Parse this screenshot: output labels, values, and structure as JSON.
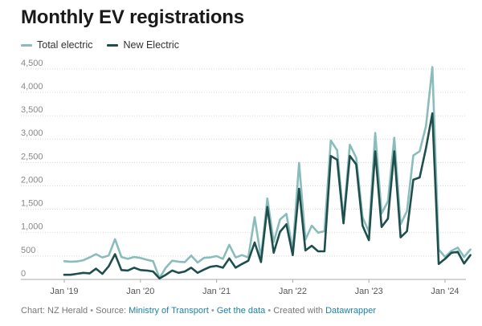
{
  "title": "Monthly EV registrations",
  "colors": {
    "total": "#8bbcbc",
    "new": "#1e4f4c",
    "grid": "#d8d8d8",
    "tick": "#888888"
  },
  "footer": {
    "chart_prefix": "Chart: NZ Herald",
    "sep": "•",
    "source_prefix": "Source:",
    "source_link": "Ministry of Transport",
    "get_data": "Get the data",
    "created_prefix": "Created with",
    "created_link": "Datawrapper"
  },
  "chart_data": {
    "type": "line",
    "ylim": [
      0,
      4600
    ],
    "y_ticks": [
      0,
      500,
      1000,
      1500,
      2000,
      2500,
      3000,
      3500,
      4000,
      4500
    ],
    "y_tick_labels": [
      "0",
      "500",
      "1,000",
      "1,500",
      "2,000",
      "2,500",
      "3,000",
      "3,500",
      "4,000",
      "4,500"
    ],
    "x_ticks": [
      {
        "label": "Jan '19",
        "index": 0
      },
      {
        "label": "Jan '20",
        "index": 12
      },
      {
        "label": "Jan '21",
        "index": 24
      },
      {
        "label": "Jan '22",
        "index": 36
      },
      {
        "label": "Jan '23",
        "index": 48
      },
      {
        "label": "Jan '24",
        "index": 60
      }
    ],
    "x": [
      "2019-01",
      "2019-02",
      "2019-03",
      "2019-04",
      "2019-05",
      "2019-06",
      "2019-07",
      "2019-08",
      "2019-09",
      "2019-10",
      "2019-11",
      "2019-12",
      "2020-01",
      "2020-02",
      "2020-03",
      "2020-04",
      "2020-05",
      "2020-06",
      "2020-07",
      "2020-08",
      "2020-09",
      "2020-10",
      "2020-11",
      "2020-12",
      "2021-01",
      "2021-02",
      "2021-03",
      "2021-04",
      "2021-05",
      "2021-06",
      "2021-07",
      "2021-08",
      "2021-09",
      "2021-10",
      "2021-11",
      "2021-12",
      "2022-01",
      "2022-02",
      "2022-03",
      "2022-04",
      "2022-05",
      "2022-06",
      "2022-07",
      "2022-08",
      "2022-09",
      "2022-10",
      "2022-11",
      "2022-12",
      "2023-01",
      "2023-02",
      "2023-03",
      "2023-04",
      "2023-05",
      "2023-06",
      "2023-07",
      "2023-08",
      "2023-09",
      "2023-10",
      "2023-11",
      "2023-12",
      "2024-01",
      "2024-02",
      "2024-03",
      "2024-04",
      "2024-05"
    ],
    "series": [
      {
        "name": "Total electric",
        "key": "total",
        "values": [
          390,
          380,
          385,
          410,
          470,
          540,
          470,
          510,
          860,
          480,
          440,
          480,
          460,
          420,
          390,
          30,
          250,
          400,
          380,
          370,
          510,
          360,
          460,
          470,
          500,
          440,
          740,
          470,
          520,
          470,
          1330,
          460,
          1730,
          800,
          1280,
          1400,
          620,
          2490,
          850,
          1150,
          1000,
          1030,
          2970,
          2760,
          1280,
          2880,
          2600,
          1330,
          1020,
          3130,
          1410,
          1670,
          3030,
          1180,
          1460,
          2650,
          2740,
          3280,
          4540,
          640,
          480,
          610,
          680,
          480,
          640
        ]
      },
      {
        "name": "New Electric",
        "key": "new",
        "values": [
          100,
          100,
          120,
          140,
          130,
          230,
          120,
          280,
          540,
          200,
          190,
          250,
          200,
          190,
          170,
          20,
          100,
          190,
          140,
          170,
          250,
          140,
          210,
          270,
          290,
          250,
          450,
          250,
          330,
          400,
          790,
          370,
          1550,
          570,
          1020,
          1180,
          520,
          1940,
          620,
          720,
          600,
          600,
          2640,
          2560,
          1200,
          2640,
          2460,
          1150,
          840,
          2740,
          1120,
          1300,
          2740,
          900,
          1030,
          2130,
          2180,
          2810,
          3550,
          330,
          440,
          570,
          590,
          340,
          520
        ]
      }
    ]
  }
}
